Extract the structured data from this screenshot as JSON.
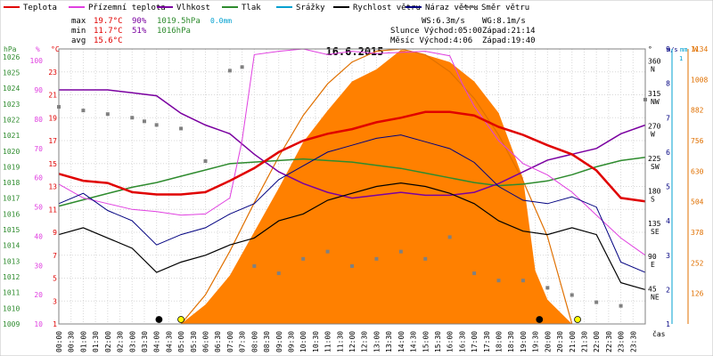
{
  "chart_data": {
    "type": "line",
    "title": "16.6.2015",
    "legend": [
      {
        "name": "Teplota",
        "color": "#e00000"
      },
      {
        "name": "Přízemní teplota",
        "color": "#e040e0"
      },
      {
        "name": "Vlhkost",
        "color": "#7a00a0"
      },
      {
        "name": "Tlak",
        "color": "#2e8b2e"
      },
      {
        "name": "Srážky",
        "color": "#00a0d0"
      },
      {
        "name": "Rychlost větru",
        "color": "#000000"
      },
      {
        "name": "Náraz větru",
        "color": "#000080"
      },
      {
        "name": "Směr větru",
        "color": "#808080"
      }
    ],
    "stats": {
      "max": {
        "label": "max",
        "temp": "19.7°C",
        "hum": "90%",
        "press": "1019.5hPa",
        "rain": "0.0mm"
      },
      "min": {
        "label": "min",
        "temp": "11.7°C",
        "hum": "51%",
        "press": "1016hPa"
      },
      "avg": {
        "label": "avg",
        "temp": "15.6°C"
      }
    },
    "info": {
      "ws": "WS:6.3m/s",
      "wg": "WG:8.1m/s",
      "sun": "Slunce Východ:05:00",
      "sun_set": "Západ:21:14",
      "moon": "Měsíc  Východ:4:06",
      "moon_set": "Západ:19:40"
    },
    "axes": {
      "hpa": {
        "label": "hPa",
        "ticks": [
          1026,
          1025,
          1024,
          1023,
          1022,
          1021,
          1020,
          1019,
          1018,
          1017,
          1016,
          1015,
          1014,
          1013,
          1012,
          1011,
          1010,
          1009
        ],
        "range": [
          1009,
          1026.5
        ]
      },
      "hum": {
        "label": "%",
        "ticks": [
          100,
          90,
          80,
          70,
          60,
          50,
          40,
          30,
          20,
          10
        ],
        "range": [
          10,
          104
        ]
      },
      "temp": {
        "label": "°C",
        "ticks": [
          23,
          21,
          19,
          17,
          15,
          13,
          11,
          9,
          7,
          5,
          3,
          1
        ],
        "range": [
          1,
          25
        ]
      },
      "dir": {
        "label": "°",
        "ticks": [
          [
            "360",
            "N"
          ],
          [
            "315",
            "NW"
          ],
          [
            "270",
            "W"
          ],
          [
            "225",
            "SW"
          ],
          [
            "180",
            "S"
          ],
          [
            "135",
            "SE"
          ],
          [
            "90",
            "E"
          ],
          [
            "45",
            "NE"
          ]
        ],
        "range": [
          0,
          380
        ]
      },
      "ms": {
        "label": "m/s",
        "ticks": [
          9,
          8,
          7,
          6,
          5,
          4,
          3,
          2,
          1
        ],
        "range": [
          1,
          9
        ]
      },
      "mm": {
        "label": "mm",
        "ticks": [
          "1"
        ]
      },
      "w": {
        "label": "W",
        "ticks": [
          1134,
          1008,
          882,
          756,
          630,
          504,
          378,
          252,
          126
        ],
        "range": [
          0,
          1134
        ]
      },
      "x": {
        "label": "čas",
        "ticks": [
          "00:00",
          "00:30",
          "01:00",
          "01:30",
          "02:00",
          "02:30",
          "03:00",
          "03:30",
          "04:00",
          "04:30",
          "05:00",
          "05:30",
          "06:00",
          "06:30",
          "07:00",
          "07:30",
          "08:00",
          "08:30",
          "09:00",
          "09:30",
          "10:00",
          "10:30",
          "11:00",
          "11:30",
          "12:00",
          "12:30",
          "13:00",
          "13:30",
          "14:00",
          "14:30",
          "15:00",
          "15:30",
          "16:00",
          "16:30",
          "17:00",
          "17:30",
          "18:00",
          "18:30",
          "19:00",
          "19:30",
          "20:00",
          "20:30",
          "21:00",
          "21:30",
          "22:00",
          "22:30",
          "23:00",
          "23:30"
        ],
        "range": [
          0,
          24
        ]
      }
    },
    "series": {
      "temperature": {
        "x": [
          0,
          1,
          2,
          3,
          4,
          5,
          6,
          7,
          8,
          9,
          10,
          11,
          12,
          13,
          14,
          15,
          16,
          17,
          18,
          19,
          20,
          21,
          22,
          23,
          24
        ],
        "y": [
          14.1,
          13.5,
          13.3,
          12.5,
          12.3,
          12.3,
          12.5,
          13.5,
          14.6,
          16.0,
          17.0,
          17.6,
          18.0,
          18.6,
          19.0,
          19.5,
          19.5,
          19.2,
          18.2,
          17.5,
          16.6,
          15.8,
          14.4,
          12.0,
          11.7
        ]
      },
      "ground_temperature": {
        "x": [
          0,
          1,
          2,
          3,
          4,
          5,
          6,
          7,
          7.5,
          8,
          9,
          10,
          11,
          12,
          13,
          14,
          15,
          16,
          16.5,
          17,
          18,
          19,
          20,
          21,
          22,
          23,
          24
        ],
        "y": [
          13.2,
          12.0,
          11.5,
          11.0,
          10.8,
          10.5,
          10.6,
          12.0,
          17.0,
          24.5,
          24.8,
          25.0,
          24.5,
          24.8,
          24.6,
          24.7,
          24.8,
          24.4,
          22.0,
          20.0,
          17.0,
          15.0,
          14.0,
          12.5,
          10.5,
          8.5,
          7.0
        ]
      },
      "humidity": {
        "x": [
          0,
          1,
          2,
          3,
          4,
          5,
          6,
          7,
          8,
          9,
          10,
          11,
          12,
          13,
          14,
          15,
          16,
          17,
          18,
          19,
          20,
          21,
          22,
          23,
          24
        ],
        "y": [
          90,
          90,
          90,
          89,
          88,
          82,
          78,
          75,
          68,
          62,
          58,
          55,
          53,
          54,
          55,
          54,
          54,
          55,
          58,
          62,
          66,
          68,
          70,
          75,
          78
        ]
      },
      "pressure": {
        "x": [
          0,
          1,
          2,
          3,
          4,
          5,
          6,
          7,
          8,
          9,
          10,
          11,
          12,
          13,
          14,
          15,
          16,
          17,
          18,
          19,
          20,
          21,
          22,
          23,
          24
        ],
        "y": [
          1016.5,
          1016.9,
          1017.3,
          1017.7,
          1018.0,
          1018.4,
          1018.8,
          1019.2,
          1019.3,
          1019.4,
          1019.5,
          1019.4,
          1019.3,
          1019.1,
          1018.9,
          1018.6,
          1018.3,
          1018.0,
          1017.8,
          1017.9,
          1018.1,
          1018.5,
          1019.0,
          1019.4,
          1019.6
        ]
      },
      "wind_speed": {
        "x": [
          0,
          1,
          2,
          3,
          4,
          5,
          6,
          7,
          8,
          9,
          10,
          11,
          12,
          13,
          14,
          15,
          16,
          17,
          18,
          19,
          20,
          21,
          22,
          23,
          24
        ],
        "y": [
          3.6,
          3.8,
          3.5,
          3.2,
          2.5,
          2.8,
          3.0,
          3.3,
          3.5,
          4.0,
          4.2,
          4.6,
          4.8,
          5.0,
          5.1,
          5.0,
          4.8,
          4.5,
          4.0,
          3.7,
          3.6,
          3.8,
          3.6,
          2.2,
          2.0
        ]
      },
      "wind_gust": {
        "x": [
          0,
          1,
          2,
          3,
          4,
          5,
          6,
          7,
          8,
          9,
          10,
          11,
          12,
          13,
          14,
          15,
          16,
          17,
          18,
          19,
          20,
          21,
          22,
          23,
          24
        ],
        "y": [
          4.5,
          4.8,
          4.3,
          4.0,
          3.3,
          3.6,
          3.8,
          4.2,
          4.5,
          5.2,
          5.6,
          6.0,
          6.2,
          6.4,
          6.5,
          6.3,
          6.1,
          5.7,
          5.0,
          4.6,
          4.5,
          4.7,
          4.4,
          2.8,
          2.5
        ]
      },
      "wind_direction": {
        "x": [
          0,
          1,
          2,
          3,
          3.5,
          4,
          5,
          6,
          7,
          7.5,
          8,
          9,
          10,
          11,
          12,
          13,
          14,
          15,
          16,
          17,
          18,
          19,
          20,
          21,
          22,
          23,
          24
        ],
        "y": [
          300,
          295,
          290,
          285,
          280,
          275,
          270,
          225,
          350,
          355,
          80,
          70,
          90,
          100,
          80,
          90,
          100,
          90,
          120,
          70,
          60,
          60,
          50,
          40,
          30,
          25,
          310
        ]
      },
      "solar_radiation": {
        "x": [
          5,
          6,
          7,
          8,
          9,
          10,
          11,
          12,
          13,
          14,
          15,
          16,
          17,
          18,
          19,
          19.5,
          20,
          21
        ],
        "y": [
          0,
          80,
          200,
          380,
          560,
          750,
          880,
          1000,
          1050,
          1130,
          1110,
          1080,
          1000,
          870,
          600,
          220,
          100,
          0
        ]
      },
      "solar_max": {
        "x": [
          5,
          6,
          7,
          8,
          9,
          10,
          11,
          12,
          13,
          14,
          15,
          16,
          17,
          18,
          19,
          20,
          21
        ],
        "y": [
          0,
          120,
          300,
          500,
          690,
          860,
          990,
          1080,
          1125,
          1134,
          1110,
          1040,
          930,
          780,
          590,
          360,
          0
        ]
      }
    }
  }
}
